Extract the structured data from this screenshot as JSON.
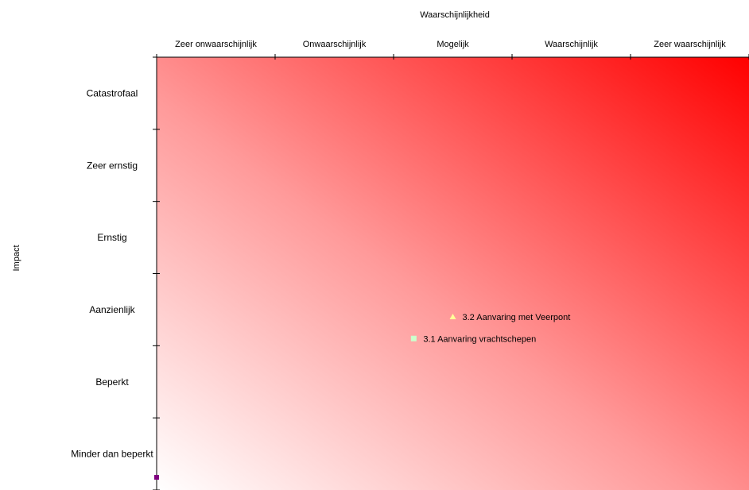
{
  "chart_data": {
    "type": "scatter",
    "title": "",
    "xlabel": "Waarschijnlijkheid",
    "ylabel": "Impact",
    "x_categories": [
      "Zeer onwaarschijnlijk",
      "Onwaarschijnlijk",
      "Mogelijk",
      "Waarschijnlijk",
      "Zeer waarschijnlijk"
    ],
    "y_categories": [
      "Minder dan beperkt",
      "Beperkt",
      "Aanzienlijk",
      "Ernstig",
      "Zeer ernstig",
      "Catastrofaal"
    ],
    "xlim": [
      0,
      5
    ],
    "ylim": [
      0,
      6
    ],
    "x_axis_position": "top",
    "grid": false,
    "background": "gradient from white (low risk, bottom-left) to red (high risk, top-right)",
    "colors": {
      "low": "#ffffff",
      "high": "#ff0000",
      "axis": "#000000",
      "origin_marker": "#800080"
    },
    "points": [
      {
        "label": "3.2 Aanvaring met Veerpont",
        "x": 2.5,
        "y": 2.4,
        "marker": "triangle",
        "color": "#ffff99"
      },
      {
        "label": "3.1 Aanvaring vrachtschepen",
        "x": 2.17,
        "y": 2.1,
        "marker": "square",
        "color": "#ccffcc"
      }
    ]
  }
}
